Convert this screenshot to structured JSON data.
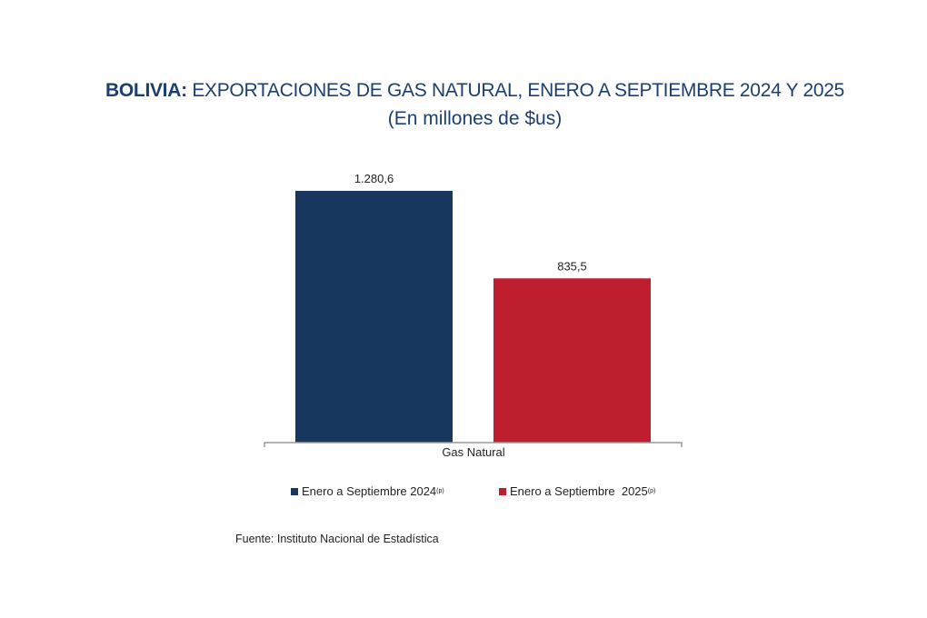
{
  "chart_data": {
    "type": "bar",
    "title_bold": "BOLIVIA:",
    "title_rest": " EXPORTACIONES DE GAS NATURAL, ENERO A SEPTIEMBRE 2024 Y 2025",
    "subtitle": "(En millones de $us)",
    "categories": [
      "Gas Natural"
    ],
    "series": [
      {
        "name": "Enero a Septiembre 2024",
        "superscript": "(p)",
        "values": [
          1280.6
        ],
        "label": "1.280,6",
        "color": "#17375e"
      },
      {
        "name": "Enero a Septiembre  2025",
        "superscript": "(p)",
        "values": [
          835.5
        ],
        "label": "835,5",
        "color": "#be1e2d"
      }
    ],
    "ylim": [
      0,
      1280.6
    ],
    "grid": false,
    "legend": "bottom",
    "source": "Fuente: Instituto Nacional de Estadística"
  }
}
